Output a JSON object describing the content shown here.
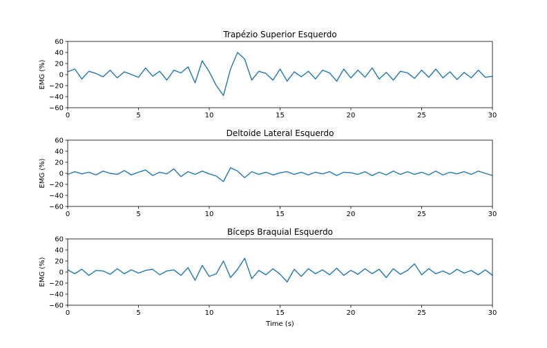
{
  "chart_data": [
    {
      "type": "line",
      "title": "Trapézio Superior Esquerdo",
      "xlabel": "",
      "ylabel": "EMG (%)",
      "xlim": [
        0,
        30
      ],
      "ylim": [
        -60,
        60
      ],
      "xticks": [
        0,
        5,
        10,
        15,
        20,
        25,
        30
      ],
      "yticks": [
        -60,
        -40,
        -20,
        0,
        20,
        40,
        60
      ],
      "grid": false,
      "color": "#1f77b4",
      "series": [
        {
          "x": [
            0,
            0.5,
            1,
            1.5,
            2,
            2.5,
            3,
            3.5,
            4,
            4.5,
            5,
            5.5,
            6,
            6.5,
            7,
            7.5,
            8,
            8.5,
            9,
            9.5,
            10,
            10.5,
            11,
            11.5,
            12,
            12.5,
            13,
            13.5,
            14,
            14.5,
            15,
            15.5,
            16,
            16.5,
            17,
            17.5,
            18,
            18.5,
            19,
            19.5,
            20,
            20.5,
            21,
            21.5,
            22,
            22.5,
            23,
            23.5,
            24,
            24.5,
            25,
            25.5,
            26,
            26.5,
            27,
            27.5,
            28,
            28.5,
            29,
            29.5,
            30
          ],
          "y": [
            5,
            10,
            -8,
            6,
            2,
            -4,
            8,
            -6,
            5,
            0,
            -5,
            12,
            -3,
            6,
            -10,
            8,
            3,
            14,
            -15,
            25,
            5,
            -20,
            -38,
            10,
            40,
            28,
            -10,
            6,
            2,
            -10,
            10,
            -12,
            5,
            -4,
            6,
            -8,
            8,
            3,
            -12,
            10,
            -6,
            8,
            -5,
            12,
            -8,
            4,
            -10,
            6,
            3,
            -7,
            8,
            -5,
            10,
            -6,
            5,
            -9,
            4,
            -6,
            8,
            -5,
            -3
          ]
        }
      ]
    },
    {
      "type": "line",
      "title": "Deltoide Lateral Esquerdo",
      "xlabel": "",
      "ylabel": "EMG (%)",
      "xlim": [
        0,
        30
      ],
      "ylim": [
        -60,
        60
      ],
      "xticks": [
        0,
        5,
        10,
        15,
        20,
        25,
        30
      ],
      "yticks": [
        -60,
        -40,
        -20,
        0,
        20,
        40,
        60
      ],
      "grid": false,
      "color": "#1f77b4",
      "series": [
        {
          "x": [
            0,
            0.5,
            1,
            1.5,
            2,
            2.5,
            3,
            3.5,
            4,
            4.5,
            5,
            5.5,
            6,
            6.5,
            7,
            7.5,
            8,
            8.5,
            9,
            9.5,
            10,
            10.5,
            11,
            11.5,
            12,
            12.5,
            13,
            13.5,
            14,
            14.5,
            15,
            15.5,
            16,
            16.5,
            17,
            17.5,
            18,
            18.5,
            19,
            19.5,
            20,
            20.5,
            21,
            21.5,
            22,
            22.5,
            23,
            23.5,
            24,
            24.5,
            25,
            25.5,
            26,
            26.5,
            27,
            27.5,
            28,
            28.5,
            29,
            29.5,
            30
          ],
          "y": [
            -2,
            3,
            -1,
            2,
            -3,
            4,
            0,
            -2,
            5,
            -3,
            2,
            6,
            -4,
            2,
            -1,
            8,
            -6,
            3,
            -2,
            4,
            -1,
            -5,
            -15,
            10,
            4,
            -8,
            3,
            -2,
            2,
            -3,
            1,
            3,
            -2,
            2,
            -3,
            2,
            -1,
            3,
            -4,
            2,
            1,
            -2,
            3,
            -4,
            2,
            -3,
            4,
            -2,
            3,
            -2,
            2,
            -3,
            4,
            -3,
            2,
            -1,
            3,
            -2,
            4,
            0,
            -4
          ]
        }
      ]
    },
    {
      "type": "line",
      "title": "Bíceps Braquial Esquerdo",
      "xlabel": "Time (s)",
      "ylabel": "EMG (%)",
      "xlim": [
        0,
        30
      ],
      "ylim": [
        -60,
        60
      ],
      "xticks": [
        0,
        5,
        10,
        15,
        20,
        25,
        30
      ],
      "yticks": [
        -60,
        -40,
        -20,
        0,
        20,
        40,
        60
      ],
      "grid": false,
      "color": "#1f77b4",
      "series": [
        {
          "x": [
            0,
            0.5,
            1,
            1.5,
            2,
            2.5,
            3,
            3.5,
            4,
            4.5,
            5,
            5.5,
            6,
            6.5,
            7,
            7.5,
            8,
            8.5,
            9,
            9.5,
            10,
            10.5,
            11,
            11.5,
            12,
            12.5,
            13,
            13.5,
            14,
            14.5,
            15,
            15.5,
            16,
            16.5,
            17,
            17.5,
            18,
            18.5,
            19,
            19.5,
            20,
            20.5,
            21,
            21.5,
            22,
            22.5,
            23,
            23.5,
            24,
            24.5,
            25,
            25.5,
            26,
            26.5,
            27,
            27.5,
            28,
            28.5,
            29,
            29.5,
            30
          ],
          "y": [
            4,
            -3,
            5,
            -6,
            3,
            2,
            -4,
            6,
            -3,
            4,
            -2,
            3,
            5,
            -5,
            2,
            4,
            -6,
            8,
            -15,
            12,
            -8,
            -3,
            20,
            -10,
            5,
            25,
            -12,
            3,
            -5,
            6,
            -4,
            -18,
            5,
            -8,
            6,
            -3,
            4,
            -5,
            7,
            -6,
            3,
            -4,
            6,
            -3,
            5,
            -10,
            6,
            -4,
            3,
            15,
            -5,
            6,
            -3,
            2,
            -4,
            5,
            -2,
            3,
            -5,
            4,
            -6
          ]
        }
      ]
    }
  ]
}
